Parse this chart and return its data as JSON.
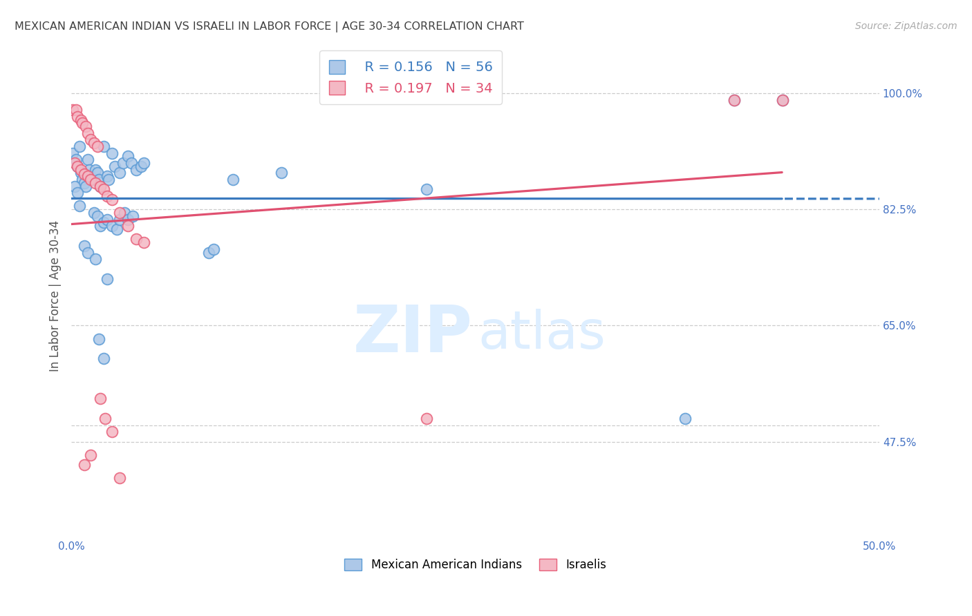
{
  "title": "MEXICAN AMERICAN INDIAN VS ISRAELI IN LABOR FORCE | AGE 30-34 CORRELATION CHART",
  "source": "Source: ZipAtlas.com",
  "ylabel_label": "In Labor Force | Age 30-34",
  "xmin": 0.0,
  "xmax": 0.5,
  "ymin": 0.33,
  "ymax": 1.06,
  "legend_blue_r": "R = 0.156",
  "legend_blue_n": "N = 56",
  "legend_pink_r": "R = 0.197",
  "legend_pink_n": "N = 34",
  "blue_scatter": [
    [
      0.001,
      0.91
    ],
    [
      0.003,
      0.9
    ],
    [
      0.004,
      0.89
    ],
    [
      0.005,
      0.92
    ],
    [
      0.006,
      0.88
    ],
    [
      0.007,
      0.87
    ],
    [
      0.008,
      0.865
    ],
    [
      0.009,
      0.86
    ],
    [
      0.01,
      0.9
    ],
    [
      0.011,
      0.885
    ],
    [
      0.012,
      0.875
    ],
    [
      0.013,
      0.87
    ],
    [
      0.015,
      0.885
    ],
    [
      0.016,
      0.88
    ],
    [
      0.017,
      0.87
    ],
    [
      0.018,
      0.86
    ],
    [
      0.02,
      0.92
    ],
    [
      0.022,
      0.875
    ],
    [
      0.023,
      0.87
    ],
    [
      0.025,
      0.91
    ],
    [
      0.027,
      0.89
    ],
    [
      0.03,
      0.88
    ],
    [
      0.032,
      0.895
    ],
    [
      0.035,
      0.905
    ],
    [
      0.037,
      0.895
    ],
    [
      0.04,
      0.885
    ],
    [
      0.043,
      0.89
    ],
    [
      0.045,
      0.895
    ],
    [
      0.002,
      0.86
    ],
    [
      0.004,
      0.85
    ],
    [
      0.014,
      0.82
    ],
    [
      0.016,
      0.815
    ],
    [
      0.018,
      0.8
    ],
    [
      0.02,
      0.805
    ],
    [
      0.022,
      0.81
    ],
    [
      0.025,
      0.8
    ],
    [
      0.028,
      0.795
    ],
    [
      0.03,
      0.81
    ],
    [
      0.033,
      0.82
    ],
    [
      0.035,
      0.81
    ],
    [
      0.038,
      0.815
    ],
    [
      0.008,
      0.77
    ],
    [
      0.01,
      0.76
    ],
    [
      0.015,
      0.75
    ],
    [
      0.022,
      0.72
    ],
    [
      0.017,
      0.63
    ],
    [
      0.02,
      0.6
    ],
    [
      0.22,
      0.855
    ],
    [
      0.38,
      0.51
    ],
    [
      0.41,
      0.99
    ],
    [
      0.44,
      0.99
    ],
    [
      0.13,
      0.88
    ],
    [
      0.1,
      0.87
    ],
    [
      0.085,
      0.76
    ],
    [
      0.088,
      0.765
    ],
    [
      0.005,
      0.83
    ]
  ],
  "pink_scatter": [
    [
      0.001,
      0.975
    ],
    [
      0.003,
      0.975
    ],
    [
      0.004,
      0.965
    ],
    [
      0.006,
      0.96
    ],
    [
      0.007,
      0.955
    ],
    [
      0.009,
      0.95
    ],
    [
      0.01,
      0.94
    ],
    [
      0.012,
      0.93
    ],
    [
      0.014,
      0.925
    ],
    [
      0.016,
      0.92
    ],
    [
      0.002,
      0.895
    ],
    [
      0.004,
      0.89
    ],
    [
      0.006,
      0.885
    ],
    [
      0.008,
      0.878
    ],
    [
      0.01,
      0.875
    ],
    [
      0.012,
      0.87
    ],
    [
      0.015,
      0.865
    ],
    [
      0.018,
      0.86
    ],
    [
      0.02,
      0.855
    ],
    [
      0.022,
      0.845
    ],
    [
      0.025,
      0.84
    ],
    [
      0.03,
      0.82
    ],
    [
      0.035,
      0.8
    ],
    [
      0.04,
      0.78
    ],
    [
      0.045,
      0.775
    ],
    [
      0.018,
      0.54
    ],
    [
      0.021,
      0.51
    ],
    [
      0.025,
      0.49
    ],
    [
      0.03,
      0.42
    ],
    [
      0.012,
      0.455
    ],
    [
      0.008,
      0.44
    ],
    [
      0.22,
      0.51
    ],
    [
      0.41,
      0.99
    ],
    [
      0.44,
      0.99
    ]
  ],
  "blue_color": "#adc8e8",
  "pink_color": "#f4b8c4",
  "blue_edge_color": "#5b9bd5",
  "pink_edge_color": "#e8607a",
  "blue_line_color": "#3a7abf",
  "pink_line_color": "#e05070",
  "grid_color": "#cccccc",
  "axis_color": "#4472c4",
  "title_color": "#404040",
  "background_color": "#ffffff"
}
